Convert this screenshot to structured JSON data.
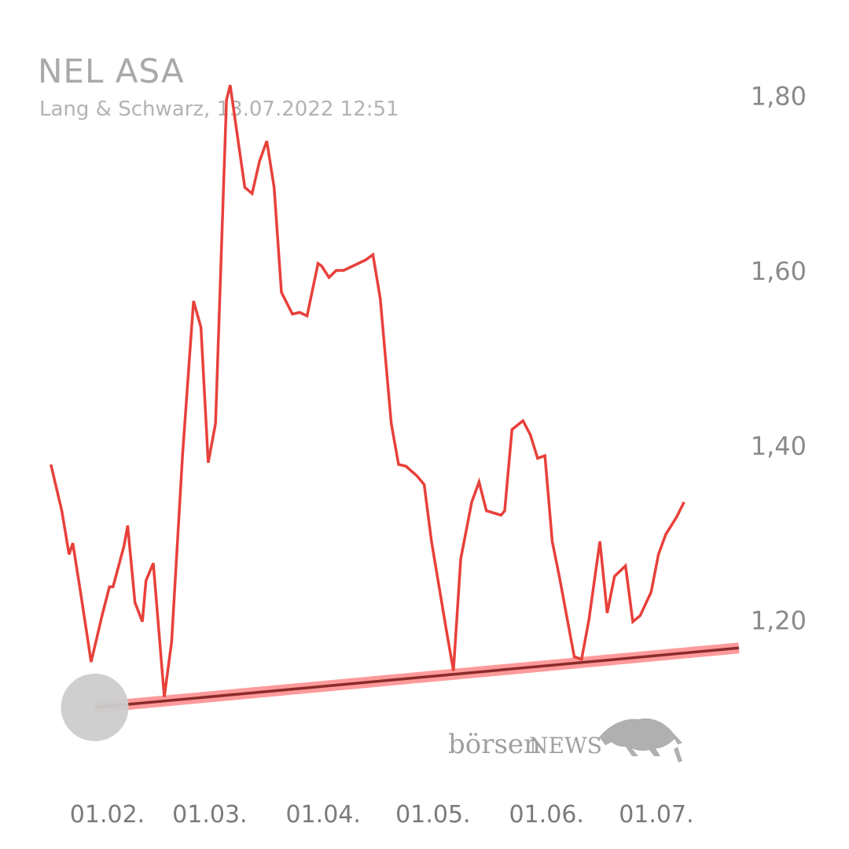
{
  "header": {
    "title": "NEL ASA",
    "subtitle": "Lang & Schwarz, 13.07.2022 12:51"
  },
  "branding": {
    "name_part1": "börsen",
    "name_part2": "NEWS",
    "icon": "bull-icon"
  },
  "colors": {
    "price_line": "#e8403a",
    "trend_band": "#ff9a9a",
    "trend_line": "#8b2a2a",
    "marker": "#cccccc"
  },
  "chart_data": {
    "type": "line",
    "title": "NEL ASA",
    "xlabel": "",
    "ylabel": "",
    "ylim": [
      1.09,
      1.815
    ],
    "yticks": [
      1.2,
      1.4,
      1.6,
      1.8
    ],
    "ytick_labels": [
      "1,20",
      "1,40",
      "1,60",
      "1,80"
    ],
    "xlim": [
      "2022-01-16",
      "2022-07-24"
    ],
    "xticks": [
      "2022-02-01",
      "2022-03-01",
      "2022-04-01",
      "2022-05-01",
      "2022-06-01",
      "2022-07-01"
    ],
    "xtick_labels": [
      "01.02.",
      "01.03.",
      "01.04.",
      "01.05.",
      "01.06.",
      "01.07."
    ],
    "grid": false,
    "series": [
      {
        "values": [
          [
            "2022-01-17",
            1.378
          ],
          [
            "2022-01-20",
            1.325
          ],
          [
            "2022-01-22",
            1.275
          ],
          [
            "2022-01-23",
            1.288
          ],
          [
            "2022-01-25",
            1.235
          ],
          [
            "2022-01-27",
            1.18
          ],
          [
            "2022-01-28",
            1.152
          ],
          [
            "2022-01-31",
            1.205
          ],
          [
            "2022-02-02",
            1.238
          ],
          [
            "2022-02-03",
            1.238
          ],
          [
            "2022-02-06",
            1.285
          ],
          [
            "2022-02-07",
            1.308
          ],
          [
            "2022-02-09",
            1.22
          ],
          [
            "2022-02-11",
            1.198
          ],
          [
            "2022-02-12",
            1.245
          ],
          [
            "2022-02-14",
            1.265
          ],
          [
            "2022-02-17",
            1.112
          ],
          [
            "2022-02-19",
            1.175
          ],
          [
            "2022-02-22",
            1.39
          ],
          [
            "2022-02-25",
            1.565
          ],
          [
            "2022-02-27",
            1.535
          ],
          [
            "2022-03-01",
            1.38
          ],
          [
            "2022-03-03",
            1.425
          ],
          [
            "2022-03-06",
            1.795
          ],
          [
            "2022-03-07",
            1.812
          ],
          [
            "2022-03-11",
            1.695
          ],
          [
            "2022-03-13",
            1.688
          ],
          [
            "2022-03-15",
            1.725
          ],
          [
            "2022-03-17",
            1.748
          ],
          [
            "2022-03-19",
            1.695
          ],
          [
            "2022-03-21",
            1.575
          ],
          [
            "2022-03-24",
            1.55
          ],
          [
            "2022-03-26",
            1.552
          ],
          [
            "2022-03-28",
            1.548
          ],
          [
            "2022-03-31",
            1.608
          ],
          [
            "2022-04-01",
            1.605
          ],
          [
            "2022-04-03",
            1.592
          ],
          [
            "2022-04-05",
            1.6
          ],
          [
            "2022-04-07",
            1.6
          ],
          [
            "2022-04-13",
            1.612
          ],
          [
            "2022-04-15",
            1.618
          ],
          [
            "2022-04-17",
            1.568
          ],
          [
            "2022-04-20",
            1.425
          ],
          [
            "2022-04-22",
            1.378
          ],
          [
            "2022-04-24",
            1.376
          ],
          [
            "2022-04-27",
            1.365
          ],
          [
            "2022-04-29",
            1.355
          ],
          [
            "2022-05-01",
            1.29
          ],
          [
            "2022-05-05",
            1.19
          ],
          [
            "2022-05-07",
            1.142
          ],
          [
            "2022-05-09",
            1.27
          ],
          [
            "2022-05-12",
            1.335
          ],
          [
            "2022-05-14",
            1.358
          ],
          [
            "2022-05-16",
            1.325
          ],
          [
            "2022-05-20",
            1.32
          ],
          [
            "2022-05-21",
            1.325
          ],
          [
            "2022-05-23",
            1.418
          ],
          [
            "2022-05-26",
            1.428
          ],
          [
            "2022-05-28",
            1.412
          ],
          [
            "2022-05-30",
            1.385
          ],
          [
            "2022-06-01",
            1.388
          ],
          [
            "2022-06-03",
            1.29
          ],
          [
            "2022-06-05",
            1.248
          ],
          [
            "2022-06-09",
            1.158
          ],
          [
            "2022-06-11",
            1.155
          ],
          [
            "2022-06-13",
            1.2
          ],
          [
            "2022-06-16",
            1.29
          ],
          [
            "2022-06-18",
            1.208
          ],
          [
            "2022-06-20",
            1.25
          ],
          [
            "2022-06-23",
            1.262
          ],
          [
            "2022-06-25",
            1.198
          ],
          [
            "2022-06-27",
            1.205
          ],
          [
            "2022-06-30",
            1.232
          ],
          [
            "2022-07-02",
            1.275
          ],
          [
            "2022-07-04",
            1.298
          ],
          [
            "2022-07-07",
            1.318
          ],
          [
            "2022-07-09",
            1.335
          ]
        ]
      }
    ],
    "trend_line": [
      [
        "2022-01-29",
        1.1
      ],
      [
        "2022-07-24",
        1.168
      ]
    ]
  }
}
